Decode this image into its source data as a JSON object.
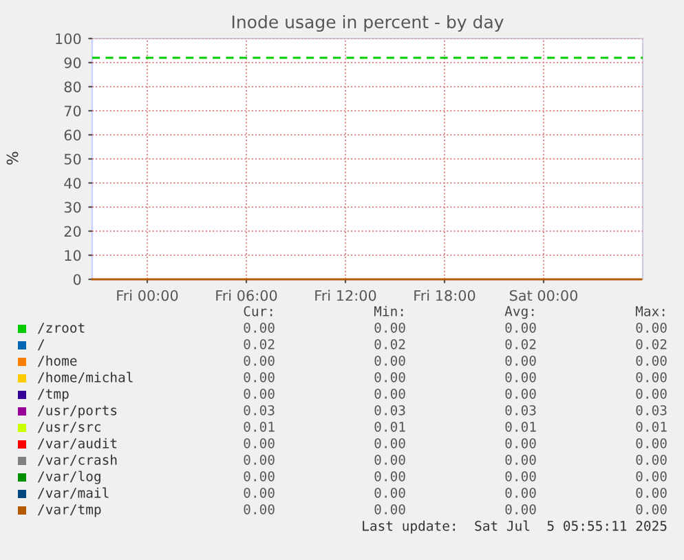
{
  "chart_data": {
    "type": "line",
    "title": "Inode usage in percent - by day",
    "ylabel": "%",
    "xlim": [
      "2025-07-03T20:40",
      "2025-07-05T06:00"
    ],
    "xticks": [
      {
        "value": "2025-07-04T00:00",
        "label": "Fri 00:00"
      },
      {
        "value": "2025-07-04T06:00",
        "label": "Fri 06:00"
      },
      {
        "value": "2025-07-04T12:00",
        "label": "Fri 12:00"
      },
      {
        "value": "2025-07-04T18:00",
        "label": "Fri 18:00"
      },
      {
        "value": "2025-07-05T00:00",
        "label": "Sat 00:00"
      }
    ],
    "ylim": [
      0,
      100
    ],
    "yticks": [
      0,
      10,
      20,
      30,
      40,
      50,
      60,
      70,
      80,
      90,
      100
    ],
    "grid": true,
    "legend": "bottom",
    "line_style": "solid",
    "marker": "none",
    "ref_lines": [
      {
        "axis": "y",
        "value": 92,
        "color": "#00cc00",
        "line_style": "dashed"
      }
    ],
    "annotations": [
      "Cur:",
      "Min:",
      "Avg:",
      "Max:",
      "0.00",
      "0.00",
      "0.00",
      "0.00",
      "0.02",
      "0.02",
      "0.02",
      "0.02",
      "0.00",
      "0.00",
      "0.00",
      "0.00",
      "0.00",
      "0.00",
      "0.00",
      "0.00",
      "0.00",
      "0.00",
      "0.00",
      "0.00",
      "0.03",
      "0.03",
      "0.03",
      "0.03",
      "0.01",
      "0.01",
      "0.01",
      "0.01",
      "0.00",
      "0.00",
      "0.00",
      "0.00",
      "0.00",
      "0.00",
      "0.00",
      "0.00",
      "0.00",
      "0.00",
      "0.00",
      "0.00",
      "0.00",
      "0.00",
      "0.00",
      "0.00",
      "0.00",
      "0.00",
      "0.00",
      "0.00",
      "Last update:  Sat Jul  5 05:55:11 2025"
    ],
    "series": [
      {
        "name": "/zroot",
        "color": "#00cc00",
        "values": [
          null
        ]
      },
      {
        "name": "/",
        "color": "#0066b3",
        "values": [
          null
        ]
      },
      {
        "name": "/home",
        "color": "#ff8000",
        "values": [
          null
        ]
      },
      {
        "name": "/home/michal",
        "color": "#ffcc00",
        "values": [
          null
        ]
      },
      {
        "name": "/tmp",
        "color": "#330099",
        "values": [
          null
        ]
      },
      {
        "name": "/usr/ports",
        "color": "#990099",
        "values": [
          null
        ]
      },
      {
        "name": "/usr/src",
        "color": "#ccff00",
        "values": [
          null
        ]
      },
      {
        "name": "/var/audit",
        "color": "#ff0000",
        "values": [
          null
        ]
      },
      {
        "name": "/var/crash",
        "color": "#808080",
        "values": [
          null
        ]
      },
      {
        "name": "/var/log",
        "color": "#008f00",
        "values": [
          null
        ]
      },
      {
        "name": "/var/mail",
        "color": "#00487d",
        "values": [
          null
        ]
      },
      {
        "name": "/var/tmp",
        "color": "#b35a00",
        "x": [
          "2025-07-03T20:40",
          "2025-07-05T05:55"
        ],
        "values": [
          0.0,
          0.0
        ]
      }
    ]
  }
}
